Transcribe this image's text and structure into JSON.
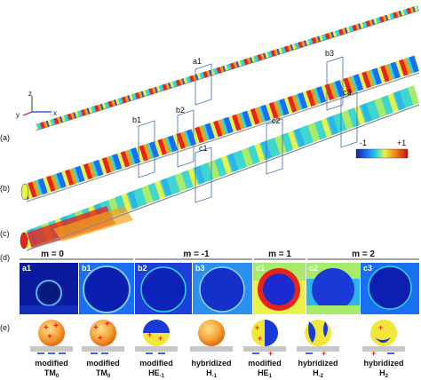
{
  "panels": {
    "a": "(a)",
    "b": "(b)",
    "c": "(c)",
    "d": "(d)",
    "e": "(e)"
  },
  "axes": {
    "y": "y",
    "z": "z",
    "x": "x"
  },
  "colorbar": {
    "min": "-1",
    "max": "+1"
  },
  "planes": {
    "a1": "a1",
    "b1": "b1",
    "b2": "b2",
    "b3": "b3",
    "c1": "c1",
    "c2": "c2",
    "c3": "c3"
  },
  "group_headers": [
    "m = 0",
    "m = -1",
    "m = 1",
    "m = 2"
  ],
  "tiles": [
    "a1",
    "b1",
    "b2",
    "b3",
    "c1",
    "c2",
    "c3"
  ],
  "modes": [
    {
      "line1": "modified",
      "line2": "TM",
      "sub": "0"
    },
    {
      "line1": "modified",
      "line2": "TM",
      "sub": "0"
    },
    {
      "line1": "modified",
      "line2": "HE",
      "sub": "-1"
    },
    {
      "line1": "hybridized",
      "line2": "H",
      "sub": "-1"
    },
    {
      "line1": "modified",
      "line2": "HE",
      "sub": "1"
    },
    {
      "line1": "hybridized",
      "line2": "H",
      "sub": "-2"
    },
    {
      "line1": "hybridized",
      "line2": "H",
      "sub": "2"
    }
  ],
  "colors": {
    "field_low": "#1a2bd0",
    "field_mid": "#2bd9e0",
    "field_high": "#e8241a",
    "substrate": "#c8c8c8"
  }
}
